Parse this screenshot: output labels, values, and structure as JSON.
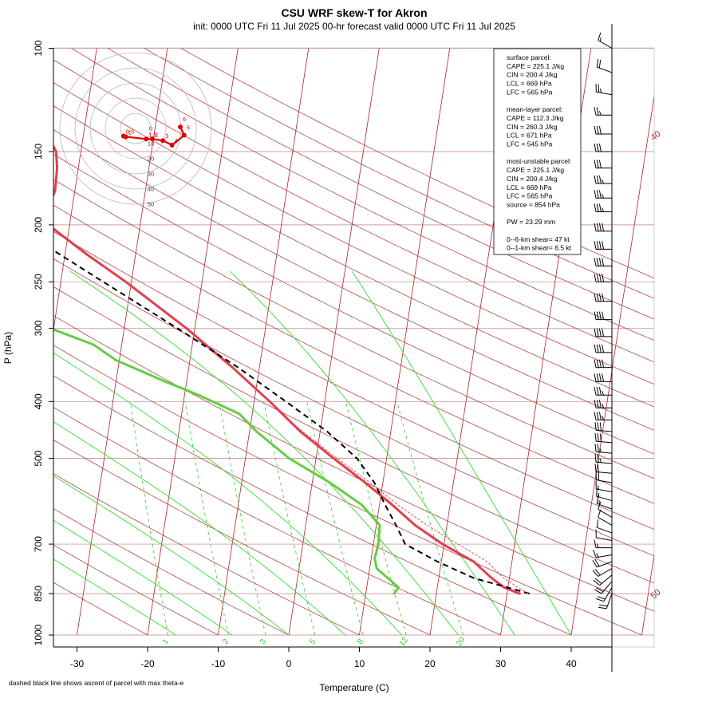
{
  "title": "CSU WRF skew-T for Akron",
  "subtitle": "init: 0000 UTC Fri 11 Jul 2025     00-hr forecast valid 0000 UTC Fri 11 Jul 2025",
  "footnote": "dashed black line shows ascent of parcel with max theta-e",
  "chart_data": {
    "type": "skew-t",
    "xlabel": "Temperature (C)",
    "ylabel": "P (hPa)",
    "x_ticks": [
      "-30",
      "-20",
      "-10",
      "0",
      "10",
      "20",
      "30",
      "40"
    ],
    "x_tick_values": [
      -30,
      -20,
      -10,
      0,
      10,
      20,
      30,
      40
    ],
    "y_ticks": [
      "100",
      "150",
      "200",
      "250",
      "300",
      "400",
      "500",
      "700",
      "850",
      "1000"
    ],
    "y_tick_values": [
      100,
      150,
      200,
      250,
      300,
      400,
      500,
      700,
      850,
      1000
    ],
    "isotherm_labels": [
      "-10",
      "0",
      "10",
      "20",
      "30",
      "40",
      "50"
    ],
    "isotherm_label_values": [
      -10,
      0,
      10,
      20,
      30,
      40,
      50
    ],
    "mixing_ratio_labels": [
      "1",
      "2",
      "3",
      "5",
      "8",
      "12",
      "20"
    ],
    "mixing_ratio_values": [
      1,
      2,
      3,
      5,
      8,
      12,
      20
    ],
    "series": [
      {
        "name": "temperature",
        "color": "#e0404f",
        "points": [
          [
            850,
            31.8
          ],
          [
            830,
            29.5
          ],
          [
            800,
            27.5
          ],
          [
            750,
            24.6
          ],
          [
            700,
            19.8
          ],
          [
            650,
            15.5
          ],
          [
            600,
            11.8
          ],
          [
            550,
            7.5
          ],
          [
            500,
            2.5
          ],
          [
            450,
            -2.8
          ],
          [
            400,
            -7.8
          ],
          [
            350,
            -13.8
          ],
          [
            300,
            -21.2
          ],
          [
            250,
            -30.8
          ],
          [
            225,
            -36.8
          ],
          [
            200,
            -43.0
          ],
          [
            190,
            -43.6
          ],
          [
            175,
            -42.8
          ],
          [
            160,
            -43.0
          ],
          [
            150,
            -43.5
          ],
          [
            125,
            -48.0
          ],
          [
            110,
            -51.5
          ]
        ]
      },
      {
        "name": "dewpoint",
        "color": "#66cc44",
        "points": [
          [
            850,
            14.0
          ],
          [
            830,
            14.5
          ],
          [
            800,
            12.8
          ],
          [
            770,
            11.0
          ],
          [
            740,
            10.5
          ],
          [
            700,
            10.7
          ],
          [
            650,
            10.5
          ],
          [
            600,
            7.5
          ],
          [
            550,
            2.5
          ],
          [
            500,
            -3.8
          ],
          [
            450,
            -9.0
          ],
          [
            420,
            -11.8
          ],
          [
            390,
            -18.0
          ],
          [
            370,
            -23.0
          ],
          [
            340,
            -30.5
          ],
          [
            320,
            -34.0
          ],
          [
            300,
            -40.5
          ],
          [
            280,
            -48.3
          ],
          [
            250,
            -59.0
          ],
          [
            245,
            -63.0
          ],
          [
            230,
            -62.0
          ],
          [
            220,
            -59.5
          ],
          [
            200,
            -57.0
          ],
          [
            180,
            -57.2
          ],
          [
            170,
            -56.0
          ],
          [
            160,
            -57.5
          ],
          [
            150,
            -58.5
          ],
          [
            110,
            -74.5
          ]
        ]
      },
      {
        "name": "parcel",
        "color": "#000000",
        "dashed": true,
        "points": [
          [
            850,
            33.2
          ],
          [
            800,
            25.0
          ],
          [
            750,
            19.5
          ],
          [
            700,
            14.5
          ],
          [
            650,
            12.8
          ],
          [
            600,
            10.8
          ],
          [
            550,
            8.8
          ],
          [
            500,
            5.8
          ],
          [
            450,
            1.0
          ],
          [
            400,
            -5.5
          ],
          [
            350,
            -13.0
          ],
          [
            300,
            -22.5
          ],
          [
            250,
            -34.0
          ],
          [
            200,
            -48.0
          ],
          [
            175,
            -58.0
          ],
          [
            160,
            -63.0
          ]
        ]
      },
      {
        "name": "virtual-temperature",
        "color": "#e0404f",
        "thin_dashed": true,
        "points": [
          [
            850,
            33.0
          ],
          [
            800,
            29.2
          ],
          [
            750,
            26.5
          ],
          [
            700,
            22.0
          ],
          [
            650,
            17.2
          ],
          [
            600,
            12.6
          ],
          [
            550,
            8.2
          ],
          [
            500,
            3.0
          ],
          [
            450,
            -2.5
          ],
          [
            420,
            -5.8
          ]
        ]
      }
    ],
    "wind_barbs": [
      {
        "p": 850,
        "dir": 200,
        "spd": 20
      },
      {
        "p": 830,
        "dir": 210,
        "spd": 20
      },
      {
        "p": 810,
        "dir": 220,
        "spd": 20
      },
      {
        "p": 790,
        "dir": 230,
        "spd": 20
      },
      {
        "p": 770,
        "dir": 240,
        "spd": 20
      },
      {
        "p": 750,
        "dir": 250,
        "spd": 20
      },
      {
        "p": 730,
        "dir": 260,
        "spd": 15
      },
      {
        "p": 710,
        "dir": 270,
        "spd": 15
      },
      {
        "p": 690,
        "dir": 280,
        "spd": 10
      },
      {
        "p": 670,
        "dir": 290,
        "spd": 10
      },
      {
        "p": 650,
        "dir": 300,
        "spd": 10
      },
      {
        "p": 630,
        "dir": 300,
        "spd": 10
      },
      {
        "p": 610,
        "dir": 290,
        "spd": 15
      },
      {
        "p": 590,
        "dir": 285,
        "spd": 15
      },
      {
        "p": 570,
        "dir": 280,
        "spd": 15
      },
      {
        "p": 550,
        "dir": 280,
        "spd": 20
      },
      {
        "p": 530,
        "dir": 275,
        "spd": 20
      },
      {
        "p": 510,
        "dir": 275,
        "spd": 25
      },
      {
        "p": 490,
        "dir": 275,
        "spd": 25
      },
      {
        "p": 470,
        "dir": 275,
        "spd": 30
      },
      {
        "p": 450,
        "dir": 275,
        "spd": 30
      },
      {
        "p": 430,
        "dir": 270,
        "spd": 35
      },
      {
        "p": 410,
        "dir": 270,
        "spd": 35
      },
      {
        "p": 390,
        "dir": 270,
        "spd": 35
      },
      {
        "p": 370,
        "dir": 270,
        "spd": 40
      },
      {
        "p": 350,
        "dir": 270,
        "spd": 40
      },
      {
        "p": 330,
        "dir": 270,
        "spd": 40
      },
      {
        "p": 310,
        "dir": 270,
        "spd": 40
      },
      {
        "p": 290,
        "dir": 270,
        "spd": 40
      },
      {
        "p": 270,
        "dir": 270,
        "spd": 40
      },
      {
        "p": 250,
        "dir": 270,
        "spd": 40
      },
      {
        "p": 235,
        "dir": 270,
        "spd": 40
      },
      {
        "p": 220,
        "dir": 270,
        "spd": 40
      },
      {
        "p": 205,
        "dir": 270,
        "spd": 40
      },
      {
        "p": 190,
        "dir": 270,
        "spd": 35
      },
      {
        "p": 180,
        "dir": 270,
        "spd": 35
      },
      {
        "p": 170,
        "dir": 270,
        "spd": 35
      },
      {
        "p": 160,
        "dir": 270,
        "spd": 30
      },
      {
        "p": 150,
        "dir": 270,
        "spd": 30
      },
      {
        "p": 140,
        "dir": 270,
        "spd": 30
      },
      {
        "p": 130,
        "dir": 270,
        "spd": 25
      },
      {
        "p": 120,
        "dir": 280,
        "spd": 25
      },
      {
        "p": 110,
        "dir": 290,
        "spd": 20
      },
      {
        "p": 100,
        "dir": 300,
        "spd": 15
      }
    ],
    "hodograph": {
      "ring_labels": [
        "0",
        "10",
        "20",
        "30",
        "40",
        "50"
      ],
      "ring_values": [
        0,
        10,
        20,
        30,
        40,
        50
      ],
      "points": [
        {
          "label": "0.5",
          "u": -8.0,
          "v": -5.0
        },
        {
          "label": "1",
          "u": -6.5,
          "v": -5.5
        },
        {
          "label": "1.5",
          "u": 7.0,
          "v": -7.0
        },
        {
          "label": "2",
          "u": 11.0,
          "v": -7.0
        },
        {
          "label": "3",
          "u": 18.0,
          "v": -8.0
        },
        {
          "label": "4",
          "u": 24.0,
          "v": -11.0
        },
        {
          "label": "5",
          "u": 32.0,
          "v": -4.5
        },
        {
          "label": "6",
          "u": 29.5,
          "v": 1.0
        }
      ]
    }
  },
  "info_box": {
    "lines": [
      "surface parcel:",
      "CAPE = 225.1 J/kg",
      "CIN = 200.4 J/kg",
      "LCL = 669 hPa",
      "LFC = 565 hPa",
      "",
      "mean-layer parcel:",
      "CAPE = 112.3 J/kg",
      "CIN = 260.3 J/kg",
      "LCL = 671 hPa",
      "LFC = 545 hPa",
      "",
      "most-unstable parcel:",
      "CAPE = 225.1 J/kg",
      "CIN = 200.4 J/kg",
      "LCL = 669 hPa",
      "LFC = 565 hPa",
      "source = 854 hPa",
      "",
      "PW =  23.29 mm",
      "",
      "0--6-km shear= 47 kt",
      "0--1-km shear= 6.5 kt"
    ]
  },
  "colors": {
    "isotherm": "#b22222",
    "dry_adiabat": "#a52a2a",
    "moist_adiabat": "#33dd33",
    "mixing_ratio": "#33cc33",
    "isobar": "#c08080",
    "temperature": "#e0404f",
    "dewpoint": "#66cc44",
    "parcel": "#000000",
    "hodograph": "#e00000"
  }
}
